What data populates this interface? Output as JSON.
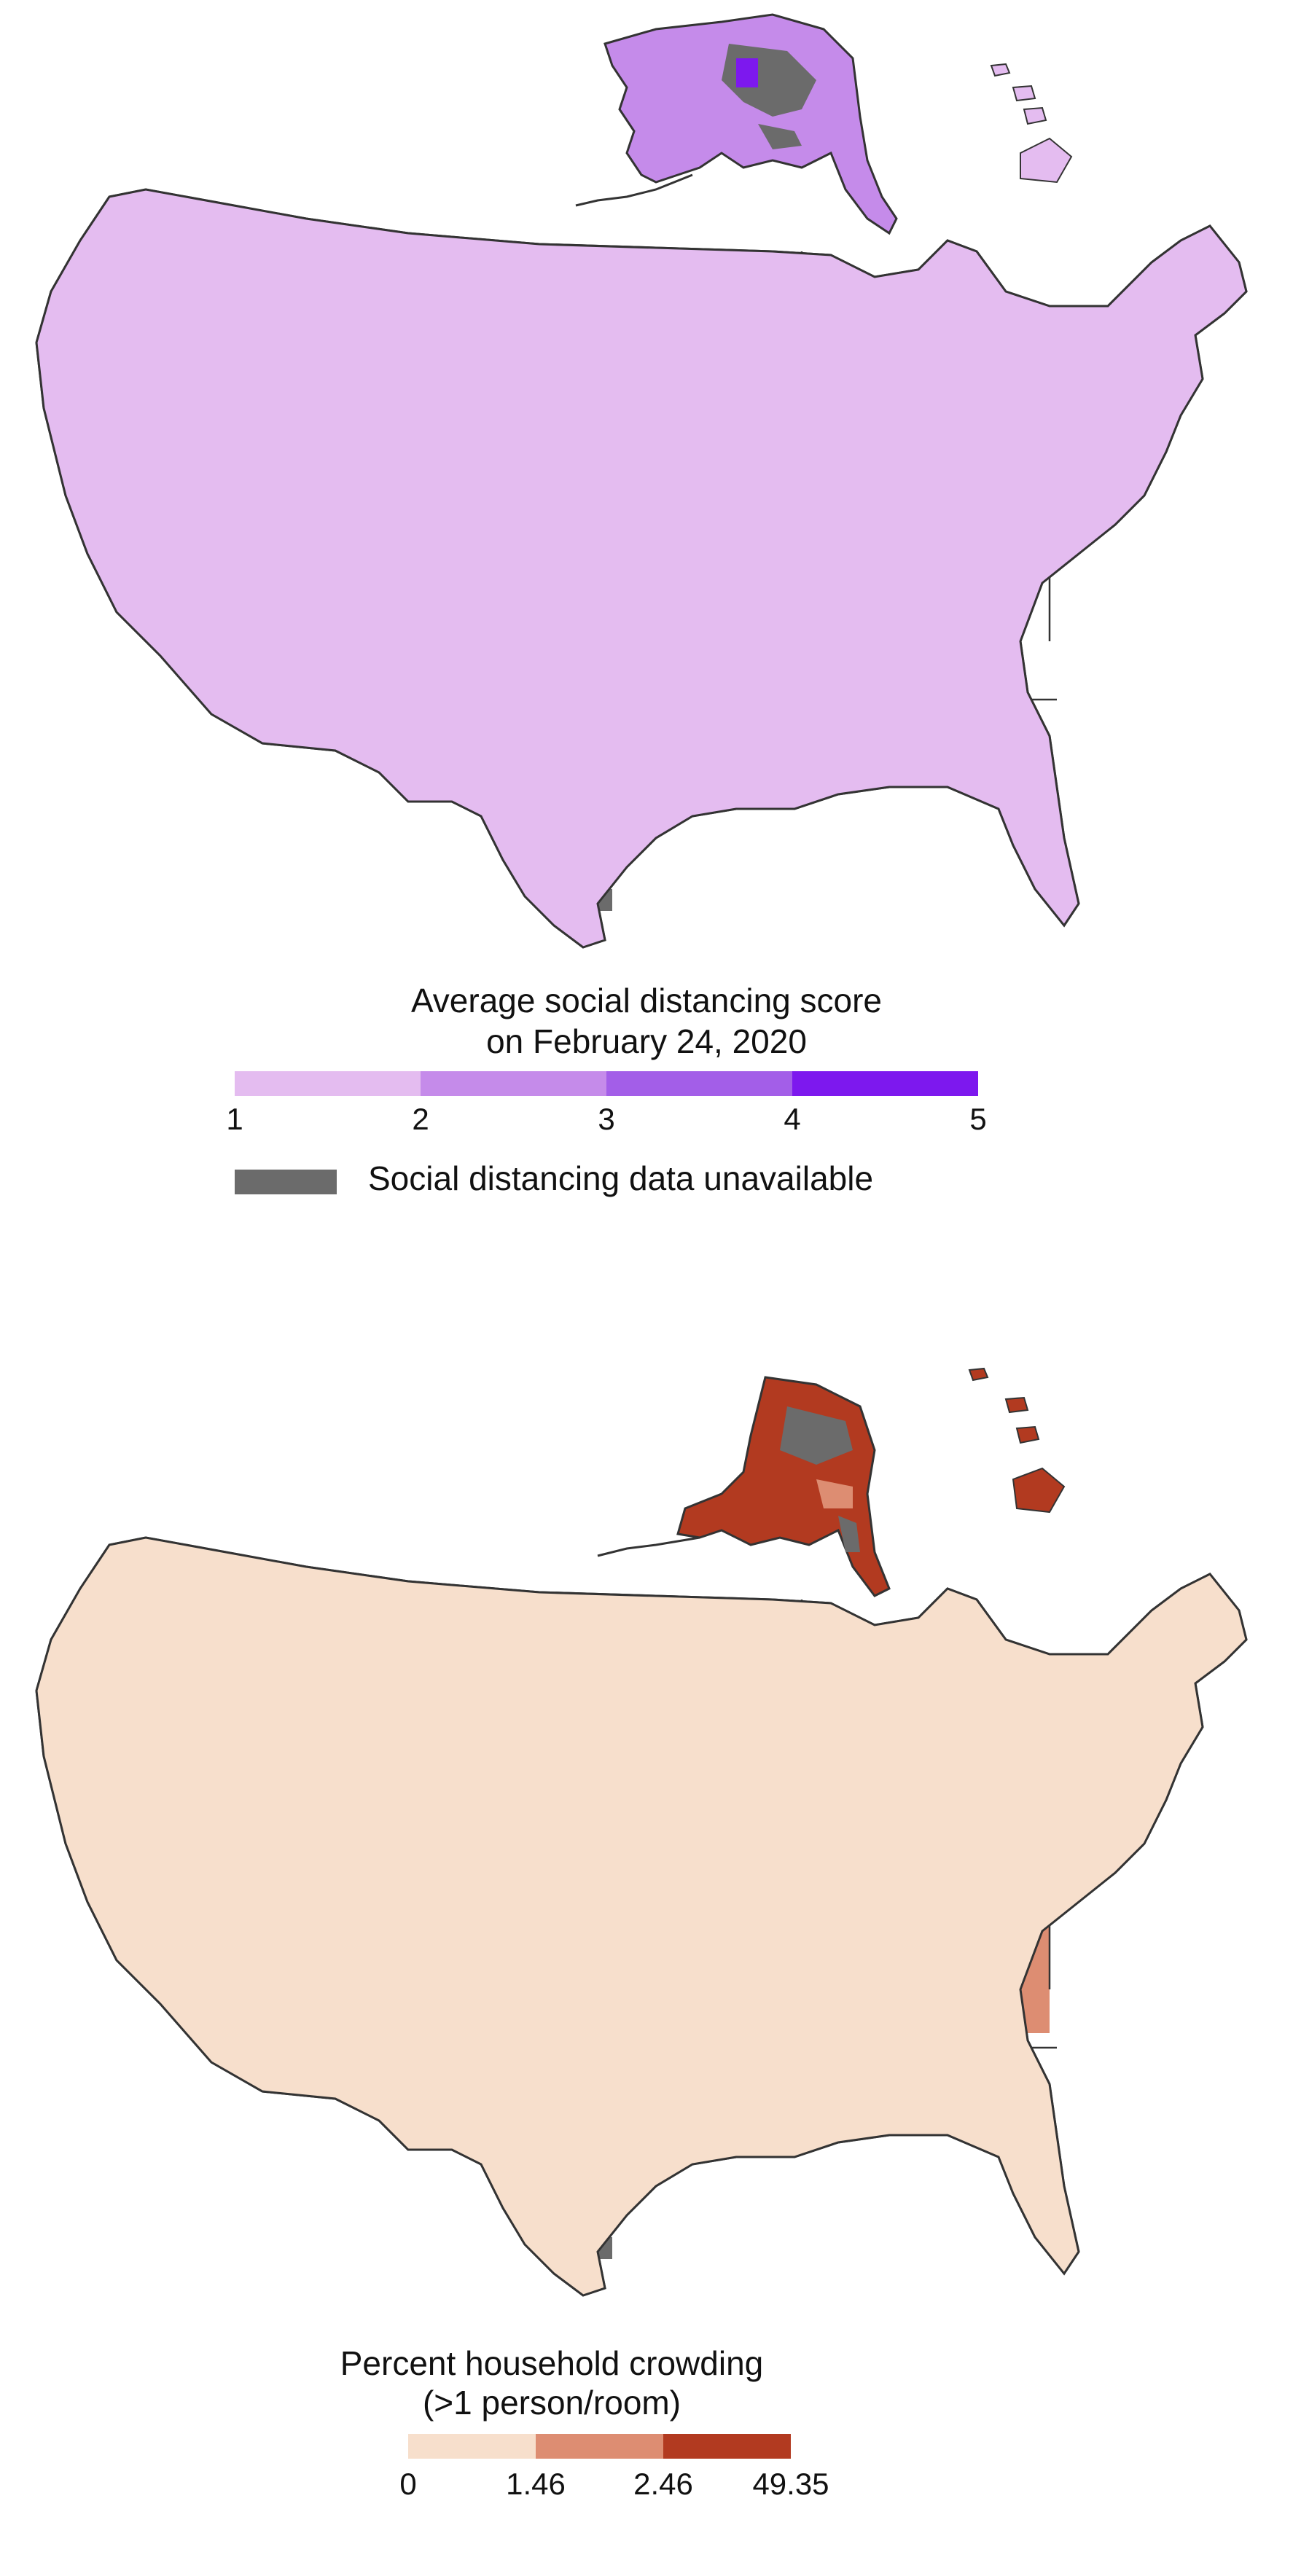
{
  "maps": [
    {
      "id": "social-distancing",
      "legend": {
        "title_line1": "Average social distancing score",
        "title_line2": "on February 24, 2020",
        "bins": [
          {
            "from": 1,
            "to": 2,
            "color": "#e4bcf0"
          },
          {
            "from": 2,
            "to": 3,
            "color": "#c58bea"
          },
          {
            "from": 3,
            "to": 4,
            "color": "#a35ee8"
          },
          {
            "from": 4,
            "to": 5,
            "color": "#7d18ee"
          }
        ],
        "ticks": [
          "1",
          "2",
          "3",
          "4",
          "5"
        ],
        "unavailable_label": "Social distancing data unavailable",
        "unavailable_color": "#6b6b6b"
      }
    },
    {
      "id": "household-crowding",
      "legend": {
        "title_line1": "Percent household crowding",
        "title_line2": "(>1 person/room)",
        "bins": [
          {
            "from": "0",
            "to": "1.46",
            "color": "#f7dfcc"
          },
          {
            "from": "1.46",
            "to": "2.46",
            "color": "#dd8d72"
          },
          {
            "from": "2.46",
            "to": "49.35",
            "color": "#b23a20"
          }
        ],
        "ticks": [
          "0",
          "1.46",
          "2.46",
          "49.35"
        ],
        "unavailable_color": "#6b6b6b"
      }
    }
  ]
}
